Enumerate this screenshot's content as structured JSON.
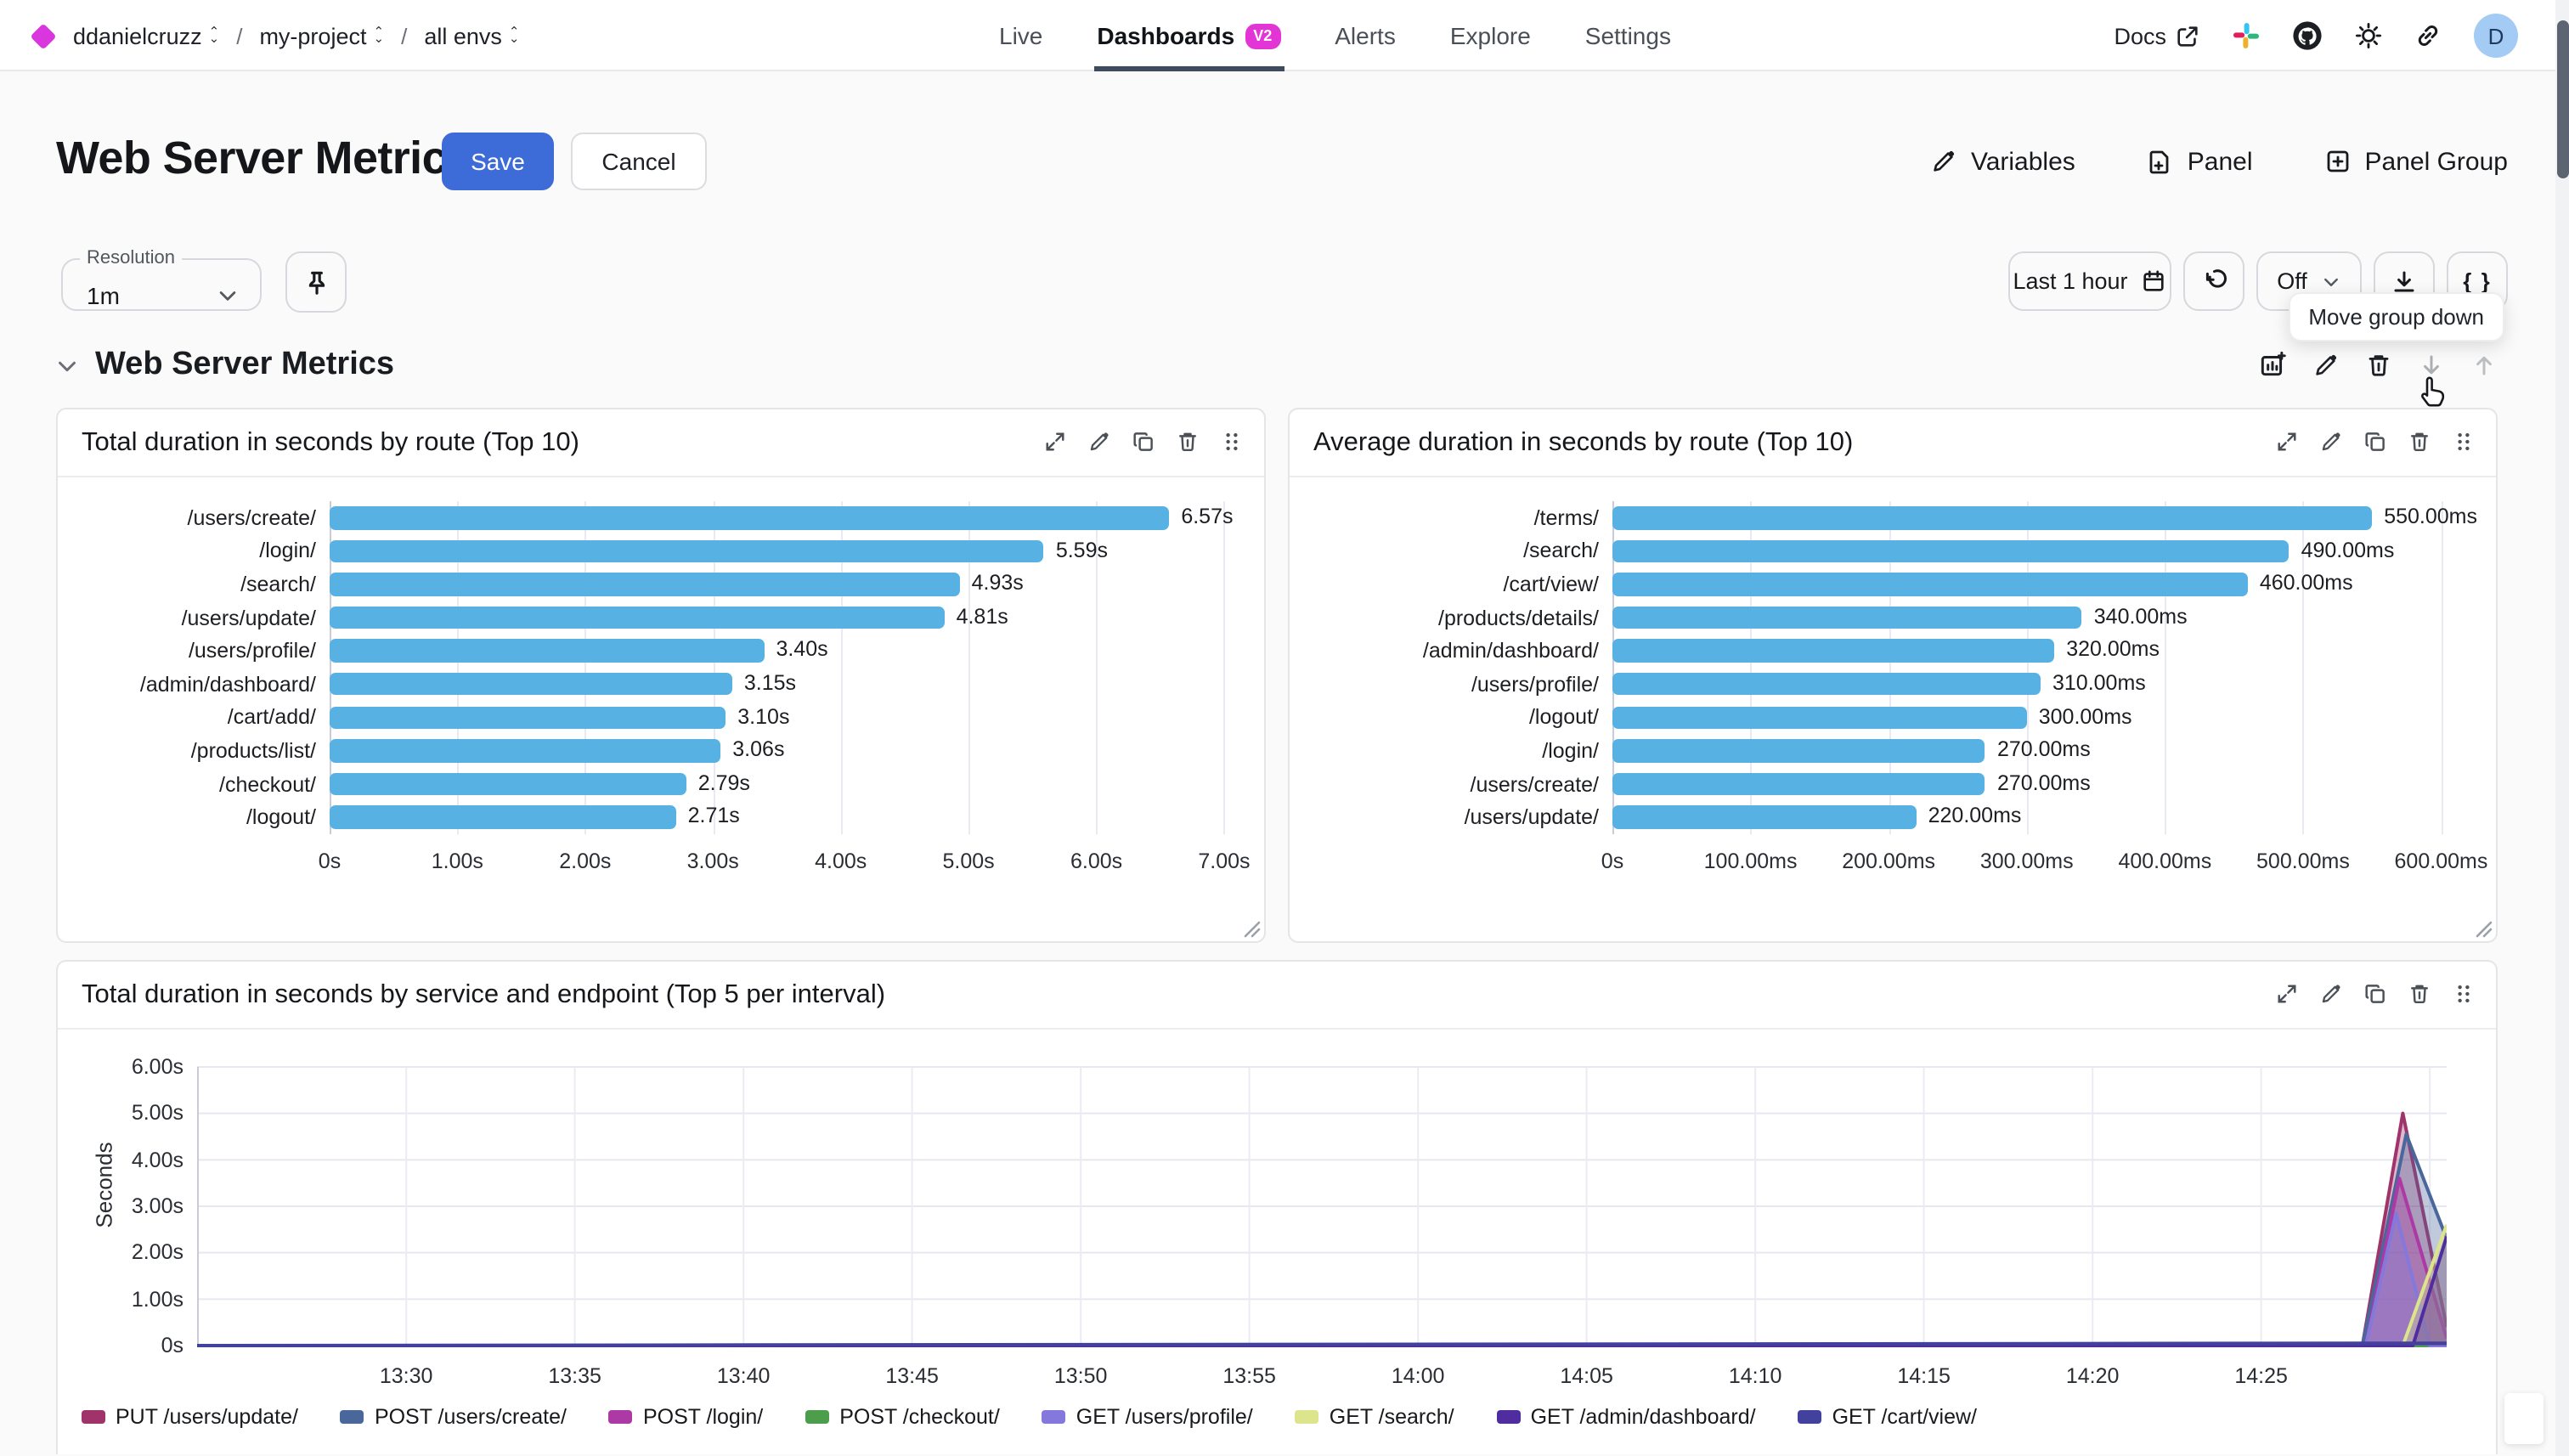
{
  "header": {
    "breadcrumb": {
      "org": "ddanielcruzz",
      "sep": "/",
      "project": "my-project",
      "env": "all envs"
    },
    "nav": [
      {
        "label": "Live"
      },
      {
        "label": "Dashboards",
        "badge": "V2"
      },
      {
        "label": "Alerts"
      },
      {
        "label": "Explore"
      },
      {
        "label": "Settings"
      }
    ],
    "docs_label": "Docs",
    "avatar_initial": "D"
  },
  "toolbar": {
    "title": "Web Server Metrics",
    "save_label": "Save",
    "cancel_label": "Cancel",
    "variables_label": "Variables",
    "panel_label": "Panel",
    "panel_group_label": "Panel Group"
  },
  "controls": {
    "resolution_label": "Resolution",
    "resolution_value": "1m",
    "time_range_value": "Last 1 hour",
    "refresh_mode_value": "Off",
    "tooltip_text": "Move group down"
  },
  "section": {
    "title": "Web Server Metrics"
  },
  "colors": {
    "bar": "#57b1e3",
    "accent_blue": "#3d6bd8",
    "badge_magenta": "#e335d6",
    "logo_magenta": "#d936dd"
  },
  "chart_data": [
    {
      "type": "bar",
      "orientation": "horizontal",
      "title": "Total duration in seconds by route (Top 10)",
      "categories": [
        "/users/create/",
        "/login/",
        "/search/",
        "/users/update/",
        "/users/profile/",
        "/admin/dashboard/",
        "/cart/add/",
        "/products/list/",
        "/checkout/",
        "/logout/"
      ],
      "values": [
        6.57,
        5.59,
        4.93,
        4.81,
        3.4,
        3.15,
        3.1,
        3.06,
        2.79,
        2.71
      ],
      "value_labels": [
        "6.57s",
        "5.59s",
        "4.93s",
        "4.81s",
        "3.40s",
        "3.15s",
        "3.10s",
        "3.06s",
        "2.79s",
        "2.71s"
      ],
      "xlim": [
        0,
        7.1
      ],
      "xtick_values": [
        0,
        1,
        2,
        3,
        4,
        5,
        6,
        7
      ],
      "xtick_labels": [
        "0s",
        "1.00s",
        "2.00s",
        "3.00s",
        "4.00s",
        "5.00s",
        "6.00s",
        "7.00s"
      ],
      "label_col_width": 146
    },
    {
      "type": "bar",
      "orientation": "horizontal",
      "title": "Average duration in seconds by route (Top 10)",
      "categories": [
        "/terms/",
        "/search/",
        "/cart/view/",
        "/products/details/",
        "/admin/dashboard/",
        "/users/profile/",
        "/logout/",
        "/login/",
        "/users/create/",
        "/users/update/"
      ],
      "values": [
        550,
        490,
        460,
        340,
        320,
        310,
        300,
        270,
        270,
        220
      ],
      "value_labels": [
        "550.00ms",
        "490.00ms",
        "460.00ms",
        "340.00ms",
        "320.00ms",
        "310.00ms",
        "300.00ms",
        "270.00ms",
        "270.00ms",
        "220.00ms"
      ],
      "xlim": [
        0,
        620
      ],
      "xtick_values": [
        0,
        100,
        200,
        300,
        400,
        500,
        600
      ],
      "xtick_labels": [
        "0s",
        "100.00ms",
        "200.00ms",
        "300.00ms",
        "400.00ms",
        "500.00ms",
        "600.00ms"
      ],
      "label_col_width": 176
    },
    {
      "type": "line",
      "title": "Total duration in seconds by service and endpoint (Top 5 per interval)",
      "ylabel": "Seconds",
      "ylim": [
        0,
        6
      ],
      "ytick_values": [
        0,
        1,
        2,
        3,
        4,
        5,
        6
      ],
      "ytick_labels": [
        "0s",
        "1.00s",
        "2.00s",
        "3.00s",
        "4.00s",
        "5.00s",
        "6.00s"
      ],
      "x_minutes_range": [
        -6.2,
        60.5
      ],
      "xtick_minutes": [
        0,
        5,
        10,
        15,
        20,
        25,
        30,
        35,
        40,
        45,
        50,
        55,
        60
      ],
      "xtick_labels": [
        "13:30",
        "13:35",
        "13:40",
        "13:45",
        "13:50",
        "13:55",
        "14:00",
        "14:05",
        "14:10",
        "14:15",
        "14:20",
        "14:25",
        ""
      ],
      "series": [
        {
          "name": "PUT /users/update/",
          "color": "#a1336b",
          "points": [
            [
              -6.2,
              0
            ],
            [
              58.0,
              0
            ],
            [
              59.2,
              5.0
            ],
            [
              60.5,
              0.4
            ]
          ]
        },
        {
          "name": "POST /users/create/",
          "color": "#4a679b",
          "points": [
            [
              -6.2,
              0
            ],
            [
              58.0,
              0
            ],
            [
              59.3,
              4.55
            ],
            [
              60.5,
              2.3
            ]
          ]
        },
        {
          "name": "POST /login/",
          "color": "#ad3aa4",
          "points": [
            [
              -6.2,
              0
            ],
            [
              58.1,
              0
            ],
            [
              59.1,
              3.6
            ],
            [
              60.5,
              0.15
            ]
          ]
        },
        {
          "name": "POST /checkout/",
          "color": "#4c9e4c",
          "points": [
            [
              -6.2,
              0
            ],
            [
              60.5,
              0
            ]
          ]
        },
        {
          "name": "GET /users/profile/",
          "color": "#8578dc",
          "points": [
            [
              -6.2,
              0
            ],
            [
              58.1,
              0
            ],
            [
              59.0,
              2.85
            ],
            [
              60.0,
              0
            ],
            [
              60.5,
              0
            ]
          ]
        },
        {
          "name": "GET /search/",
          "color": "#dce48c",
          "points": [
            [
              -6.2,
              0
            ],
            [
              59.2,
              0
            ],
            [
              60.5,
              2.6
            ]
          ]
        },
        {
          "name": "GET /admin/dashboard/",
          "color": "#4f2d9e",
          "points": [
            [
              -6.2,
              0
            ],
            [
              59.5,
              0
            ],
            [
              60.5,
              2.35
            ]
          ]
        },
        {
          "name": "GET /cart/view/",
          "color": "#42429e",
          "points": [
            [
              -6.2,
              0
            ],
            [
              60.5,
              0.05
            ]
          ]
        }
      ],
      "legend_position": "bottom"
    }
  ]
}
